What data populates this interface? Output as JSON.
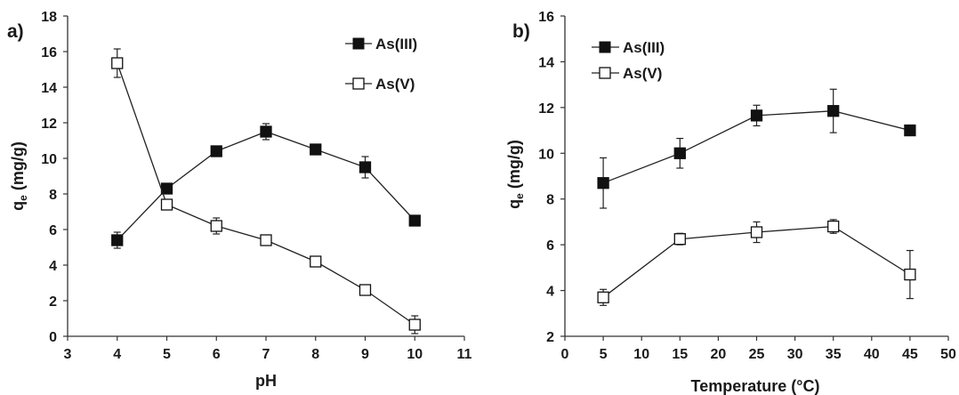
{
  "chart_data": [
    {
      "type": "line",
      "panel_label": "a)",
      "xlabel": "pH",
      "ylabel": "q",
      "ylabel_sub": "e",
      "ylabel_unit": " (mg/g)",
      "xlim": [
        3,
        11
      ],
      "ylim": [
        0,
        18
      ],
      "x_ticks": [
        3,
        4,
        5,
        6,
        7,
        8,
        9,
        10,
        11
      ],
      "x_tick_labels": [
        "3",
        "4",
        "5",
        "6",
        "7",
        "8",
        "9",
        "10",
        "11"
      ],
      "y_ticks": [
        0,
        2,
        4,
        6,
        8,
        10,
        12,
        14,
        16,
        18
      ],
      "y_tick_labels": [
        "0",
        "2",
        "4",
        "6",
        "8",
        "10",
        "12",
        "14",
        "16",
        "18"
      ],
      "grid": false,
      "legend_position": "top-right",
      "series": [
        {
          "name": "As(III)",
          "marker": "filled-square",
          "x": [
            4,
            5,
            6,
            7,
            8,
            9,
            10
          ],
          "y": [
            5.4,
            8.3,
            10.4,
            11.5,
            10.5,
            9.5,
            6.5
          ],
          "error": [
            0.45,
            0.2,
            0.15,
            0.45,
            0.2,
            0.6,
            0.15
          ]
        },
        {
          "name": "As(V)",
          "marker": "open-square",
          "x": [
            4,
            5,
            6,
            7,
            8,
            9,
            10
          ],
          "y": [
            15.35,
            7.4,
            6.2,
            5.4,
            4.2,
            2.6,
            0.65
          ],
          "error": [
            0.8,
            0.25,
            0.45,
            0.25,
            0.2,
            0.15,
            0.5
          ]
        }
      ]
    },
    {
      "type": "line",
      "panel_label": "b)",
      "xlabel": "Temperature (°C)",
      "ylabel": "q",
      "ylabel_sub": "e",
      "ylabel_unit": " (mg/g)",
      "xlim": [
        0,
        50
      ],
      "ylim": [
        2,
        16
      ],
      "x_ticks": [
        0,
        5,
        10,
        15,
        20,
        25,
        30,
        35,
        40,
        45,
        50
      ],
      "x_tick_labels": [
        "0",
        "5",
        "10",
        "15",
        "20",
        "25",
        "30",
        "35",
        "40",
        "45",
        "50"
      ],
      "y_ticks": [
        2,
        4,
        6,
        8,
        10,
        12,
        14,
        16
      ],
      "y_tick_labels": [
        "2",
        "4",
        "6",
        "8",
        "10",
        "12",
        "14",
        "16"
      ],
      "grid": false,
      "legend_position": "top-left",
      "series": [
        {
          "name": "As(III)",
          "marker": "filled-square",
          "x": [
            5,
            15,
            25,
            35,
            45
          ],
          "y": [
            8.7,
            10.0,
            11.65,
            11.85,
            11.0
          ],
          "error": [
            1.1,
            0.65,
            0.45,
            0.95,
            0.05
          ]
        },
        {
          "name": "As(V)",
          "marker": "open-square",
          "x": [
            5,
            15,
            25,
            35,
            45
          ],
          "y": [
            3.7,
            6.25,
            6.55,
            6.8,
            4.7
          ],
          "error": [
            0.35,
            0.25,
            0.45,
            0.3,
            1.05
          ]
        }
      ]
    }
  ]
}
